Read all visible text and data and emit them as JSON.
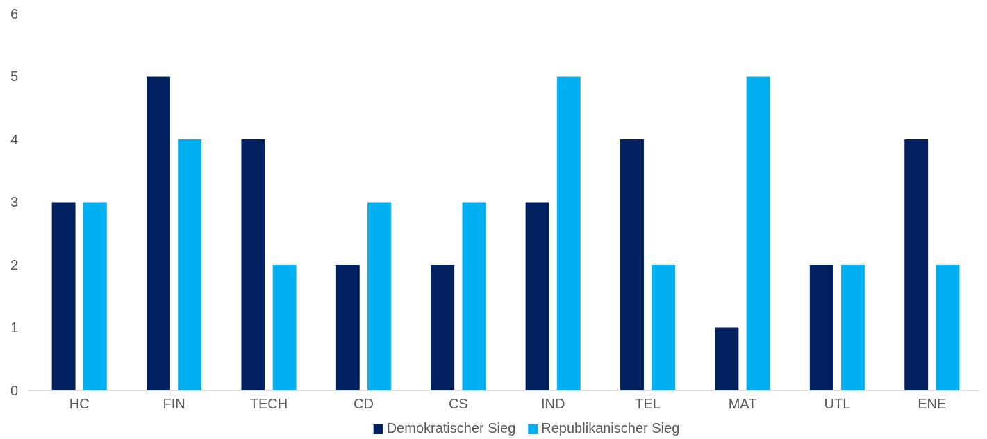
{
  "chart_data": {
    "type": "bar",
    "categories": [
      "HC",
      "FIN",
      "TECH",
      "CD",
      "CS",
      "IND",
      "TEL",
      "MAT",
      "UTL",
      "ENE"
    ],
    "series": [
      {
        "name": "Demokratischer Sieg",
        "color": "#002060",
        "values": [
          3,
          5,
          4,
          2,
          2,
          3,
          4,
          1,
          2,
          4
        ]
      },
      {
        "name": "Republikanischer Sieg",
        "color": "#00b0f0",
        "values": [
          3,
          4,
          2,
          3,
          3,
          5,
          2,
          5,
          2,
          2
        ]
      }
    ],
    "ylim": [
      0,
      6
    ],
    "yticks": [
      0,
      1,
      2,
      3,
      4,
      5,
      6
    ],
    "grid": false,
    "legend": "bottom"
  }
}
